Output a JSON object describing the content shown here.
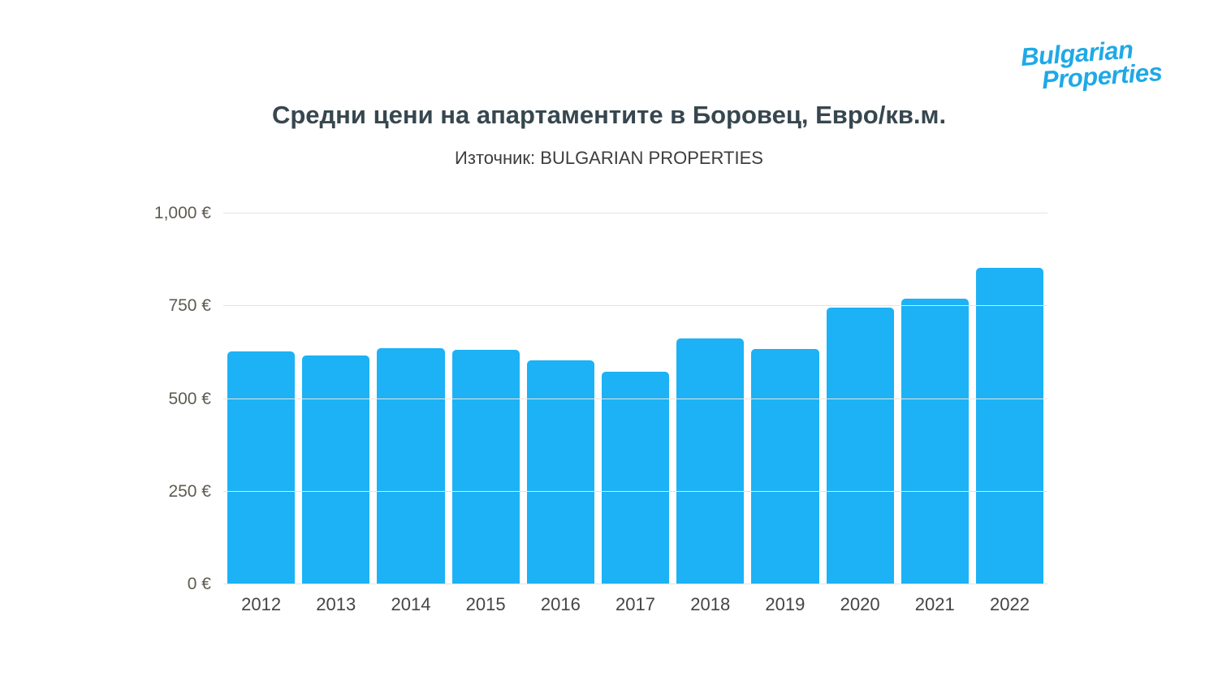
{
  "logo": {
    "line1": "Bulgarian",
    "line2": "Properties",
    "color": "#1fa9e6"
  },
  "header": {
    "title": "Средни цени на апартаментите в Боровец, Евро/кв.м.",
    "subtitle": "Източник: BULGARIAN PROPERTIES"
  },
  "chart_data": {
    "type": "bar",
    "title": "Средни цени на апартаментите в Боровец, Евро/кв.м.",
    "subtitle": "Източник: BULGARIAN PROPERTIES",
    "categories": [
      "2012",
      "2013",
      "2014",
      "2015",
      "2016",
      "2017",
      "2018",
      "2019",
      "2020",
      "2021",
      "2022"
    ],
    "values": [
      628,
      618,
      636,
      632,
      605,
      573,
      664,
      634,
      746,
      771,
      854
    ],
    "unit": "€/кв.м.",
    "ylim": [
      0,
      1000
    ],
    "yticks": [
      {
        "value": 0,
        "label": "0 €"
      },
      {
        "value": 250,
        "label": "250 €"
      },
      {
        "value": 500,
        "label": "500 €"
      },
      {
        "value": 750,
        "label": "750 €"
      },
      {
        "value": 1000,
        "label": "1,000 €"
      }
    ],
    "bar_color": "#1cb2f5",
    "grid": true,
    "legend": false
  }
}
